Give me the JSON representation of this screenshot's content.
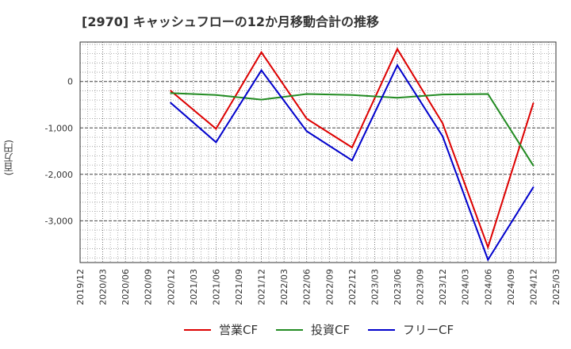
{
  "chart_data": {
    "type": "line",
    "title": "[2970]  キャッシュフローの12か月移動合計の推移",
    "ylabel": "(百万円)",
    "xlabel": "",
    "ylim": [
      -3900,
      850
    ],
    "yticks": [
      0,
      -1000,
      -2000,
      -3000
    ],
    "ytick_labels": [
      "0",
      "-1,000",
      "-2,000",
      "-3,000"
    ],
    "xticks": [
      "2019/12",
      "2020/03",
      "2020/06",
      "2020/09",
      "2020/12",
      "2021/03",
      "2021/06",
      "2021/09",
      "2021/12",
      "2022/03",
      "2022/06",
      "2022/09",
      "2022/12",
      "2023/03",
      "2023/06",
      "2023/09",
      "2023/12",
      "2024/03",
      "2024/06",
      "2024/09",
      "2024/12",
      "2025/03"
    ],
    "x": [
      "2020/12",
      "2021/06",
      "2021/12",
      "2022/06",
      "2022/12",
      "2023/06",
      "2023/12",
      "2024/06",
      "2024/12"
    ],
    "series": [
      {
        "name": "営業CF",
        "color": "#dd0000",
        "values": [
          -200,
          -1020,
          630,
          -800,
          -1420,
          700,
          -900,
          -3570,
          -470
        ]
      },
      {
        "name": "投資CF",
        "color": "#228b22",
        "values": [
          -250,
          -290,
          -390,
          -270,
          -290,
          -350,
          -280,
          -270,
          -1810
        ]
      },
      {
        "name": "フリーCF",
        "color": "#0000cc",
        "values": [
          -460,
          -1310,
          240,
          -1070,
          -1700,
          350,
          -1180,
          -3840,
          -2280
        ]
      }
    ],
    "grid": true,
    "legend": "bottom"
  }
}
